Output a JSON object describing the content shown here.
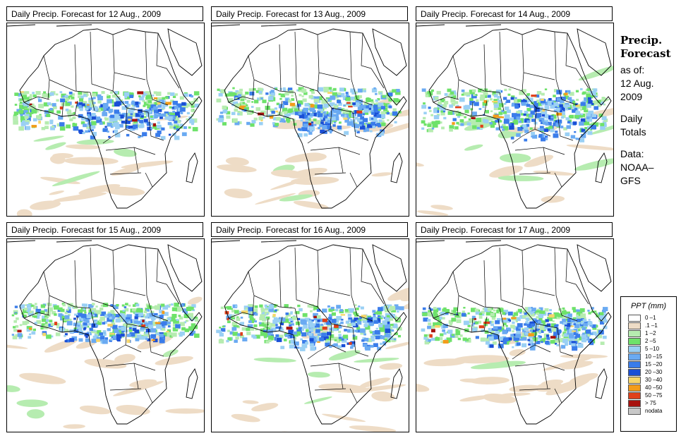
{
  "panels": [
    {
      "title": "Daily Precip. Forecast for  12 Aug., 2009"
    },
    {
      "title": "Daily Precip. Forecast for  13 Aug., 2009"
    },
    {
      "title": "Daily Precip. Forecast for  14 Aug., 2009"
    },
    {
      "title": "Daily Precip. Forecast for  15 Aug., 2009"
    },
    {
      "title": "Daily Precip. Forecast for  16 Aug., 2009"
    },
    {
      "title": "Daily Precip. Forecast for  17 Aug., 2009"
    }
  ],
  "side": {
    "heading1": "Precip.",
    "heading2": "Forecast",
    "asof": "as of:",
    "date1": "12 Aug.",
    "date2": "2009",
    "totals1": "Daily",
    "totals2": "Totals",
    "data1": "Data:",
    "data2": "NOAA–",
    "data3": "GFS"
  },
  "legend": {
    "title": "PPT (mm)",
    "items": [
      {
        "label": "0 –1",
        "color": "#ffffff"
      },
      {
        "label": ".1 –1",
        "color": "#eedcc6"
      },
      {
        "label": "1 –2",
        "color": "#b6ecb0"
      },
      {
        "label": "2 –5",
        "color": "#6ee26a"
      },
      {
        "label": "5 –10",
        "color": "#9ad0f4"
      },
      {
        "label": "10 –15",
        "color": "#6aaaf2"
      },
      {
        "label": "15 –20",
        "color": "#3a7cea"
      },
      {
        "label": "20 –30",
        "color": "#1a4fd6"
      },
      {
        "label": "30 –40",
        "color": "#f6d66a"
      },
      {
        "label": "40 –50",
        "color": "#f39c1a"
      },
      {
        "label": "50 –75",
        "color": "#e0401a"
      },
      {
        "label": "> 75",
        "color": "#a8120e"
      },
      {
        "label": "nodata",
        "color": "#c8c8c8"
      }
    ]
  }
}
